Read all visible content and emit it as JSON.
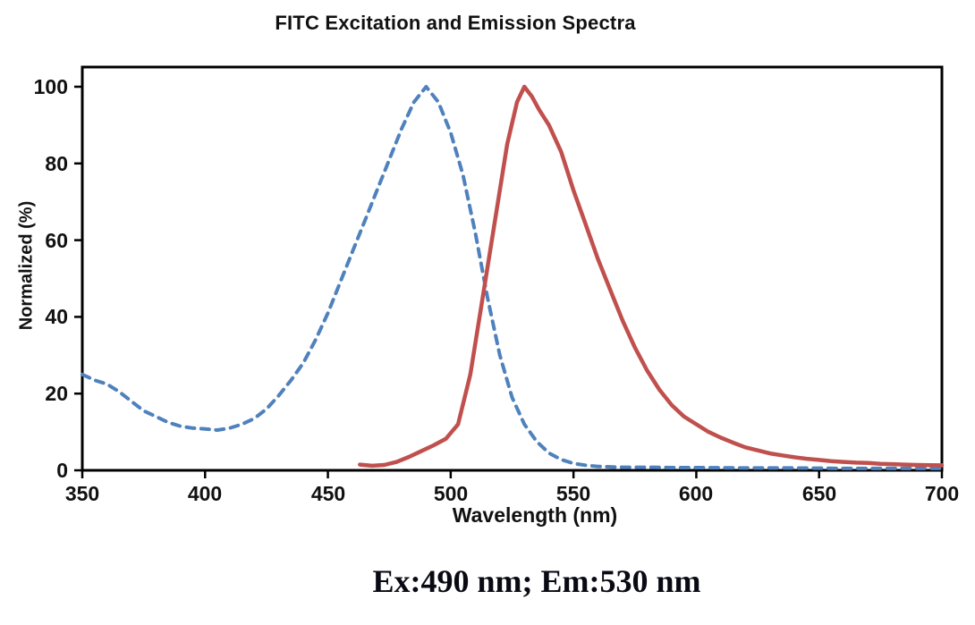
{
  "chart_data": {
    "type": "line",
    "title": "FITC Excitation and Emission Spectra",
    "xlabel": "Wavelength (nm)",
    "ylabel": "Normalized (%)",
    "annotation": "Ex:490 nm; Em:530 nm",
    "xlim": [
      350,
      700
    ],
    "ylim": [
      0,
      105
    ],
    "x_ticks": [
      350,
      400,
      450,
      500,
      550,
      600,
      650,
      700
    ],
    "y_ticks": [
      0,
      20,
      40,
      60,
      80,
      100
    ],
    "grid": false,
    "legend": "none",
    "axis_color": "#000000",
    "background_color": "#ffffff",
    "series": [
      {
        "id": "excitation-curve",
        "name": "Excitation (dashed blue)",
        "color": "#4f81bd",
        "style": "dashed",
        "line_width": 4,
        "peak_nm": 490,
        "x": [
          350,
          355,
          360,
          365,
          370,
          375,
          380,
          385,
          390,
          395,
          400,
          405,
          410,
          415,
          420,
          425,
          430,
          435,
          440,
          445,
          450,
          455,
          460,
          465,
          470,
          475,
          480,
          485,
          490,
          495,
          500,
          505,
          510,
          515,
          520,
          525,
          530,
          535,
          540,
          545,
          550,
          555,
          560,
          570,
          580,
          590,
          600,
          620,
          640,
          660,
          680,
          700
        ],
        "y": [
          25,
          23.5,
          22.5,
          20.5,
          18,
          15.5,
          14,
          12.5,
          11.5,
          11,
          10.8,
          10.5,
          11,
          12,
          13.5,
          16,
          19.5,
          23.5,
          28,
          34,
          41,
          49,
          57,
          65,
          73,
          81,
          89,
          96,
          100,
          96,
          88,
          77,
          62,
          45,
          30,
          19,
          12,
          7.5,
          4.5,
          2.8,
          1.8,
          1.3,
          1,
          0.8,
          0.8,
          0.7,
          0.7,
          0.6,
          0.6,
          0.5,
          0.5,
          0.5
        ]
      },
      {
        "id": "emission-curve",
        "name": "Emission (solid red)",
        "color": "#c0504d",
        "style": "solid",
        "line_width": 4.5,
        "peak_nm": 530,
        "x": [
          463,
          468,
          473,
          478,
          483,
          488,
          493,
          498,
          503,
          508,
          513,
          518,
          523,
          527,
          530,
          533,
          536,
          540,
          545,
          550,
          555,
          560,
          565,
          570,
          575,
          580,
          585,
          590,
          595,
          600,
          605,
          610,
          615,
          620,
          625,
          630,
          635,
          640,
          645,
          650,
          655,
          660,
          665,
          670,
          675,
          680,
          685,
          690,
          695,
          700
        ],
        "y": [
          1.5,
          1.2,
          1.4,
          2.2,
          3.5,
          5,
          6.5,
          8.2,
          12,
          25,
          45,
          65,
          85,
          96,
          100,
          97.5,
          94,
          90,
          83,
          73,
          64,
          55,
          47,
          39,
          32,
          26,
          21,
          17,
          14,
          12,
          10,
          8.5,
          7.2,
          6,
          5.2,
          4.4,
          3.9,
          3.4,
          3,
          2.7,
          2.4,
          2.2,
          2,
          1.9,
          1.7,
          1.6,
          1.5,
          1.4,
          1.35,
          1.3
        ]
      }
    ]
  }
}
